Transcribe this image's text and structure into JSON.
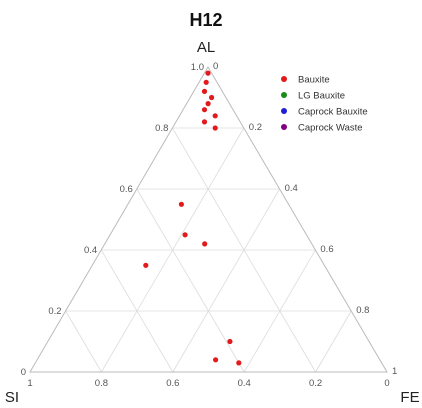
{
  "chart_data": {
    "type": "ternary-scatter",
    "title": "H12",
    "axes": {
      "a": {
        "label": "AL",
        "ticks": [
          "0",
          "0.2",
          "0.4",
          "0.6",
          "0.8",
          "1.0"
        ]
      },
      "b": {
        "label": "SI",
        "ticks": [
          "1",
          "0.8",
          "0.6",
          "0.4",
          "0.2",
          "0"
        ]
      },
      "c": {
        "label": "FE",
        "ticks": [
          "0",
          "0.2",
          "0.4",
          "0.6",
          "0.8",
          "1"
        ]
      }
    },
    "legend_position": "top-right",
    "series": [
      {
        "name": "Bauxite",
        "color": "#e31a1c",
        "points": [
          [
            0.98,
            0.01,
            0.01
          ],
          [
            0.95,
            0.03,
            0.02
          ],
          [
            0.92,
            0.05,
            0.03
          ],
          [
            0.9,
            0.04,
            0.06
          ],
          [
            0.88,
            0.06,
            0.06
          ],
          [
            0.86,
            0.08,
            0.06
          ],
          [
            0.84,
            0.06,
            0.1
          ],
          [
            0.82,
            0.1,
            0.08
          ],
          [
            0.8,
            0.08,
            0.12
          ],
          [
            0.55,
            0.3,
            0.15
          ],
          [
            0.45,
            0.34,
            0.21
          ],
          [
            0.42,
            0.3,
            0.28
          ],
          [
            0.1,
            0.39,
            0.51
          ],
          [
            0.04,
            0.46,
            0.5
          ],
          [
            0.03,
            0.4,
            0.57
          ],
          [
            0.35,
            0.5,
            0.15
          ]
        ]
      },
      {
        "name": "LG Bauxite",
        "color": "#1a8a1a",
        "points": []
      },
      {
        "name": "Caprock Bauxite",
        "color": "#1f1fd6",
        "points": []
      },
      {
        "name": "Caprock Waste",
        "color": "#800080",
        "points": []
      }
    ]
  }
}
